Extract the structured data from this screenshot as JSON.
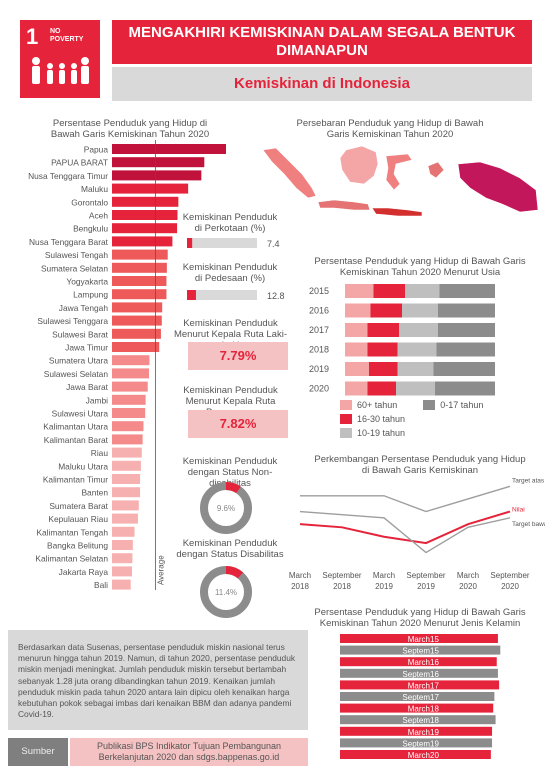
{
  "header": {
    "sdg_number": "1",
    "sdg_label_line1": "NO",
    "sdg_label_line2": "POVERTY",
    "title": "MENGAKHIRI KEMISKINAN DALAM SEGALA BENTUK DIMANAPUN",
    "subtitle": "Kemiskinan di Indonesia"
  },
  "colors": {
    "red": "#e5243b",
    "pink": "#f4c2c2",
    "grey": "#d9d9d9",
    "dark_grey": "#7f7f7f"
  },
  "chart_data": [
    {
      "type": "bar",
      "title": "Persentase Penduduk yang Hidup di Bawah Garis Kemiskinan Tahun 2020",
      "orientation": "horizontal",
      "reference_line_label": "Average",
      "reference_line_value": 10.2,
      "categories": [
        "Papua",
        "PAPUA BARAT",
        "Nusa Tenggara Timur",
        "Maluku",
        "Gorontalo",
        "Aceh",
        "Bengkulu",
        "Nusa Tenggara Barat",
        "Sulawesi Tengah",
        "Sumatera Selatan",
        "Yogyakarta",
        "Lampung",
        "Jawa Tengah",
        "Sulawesi Tenggara",
        "Sulawesi Barat",
        "Jawa Timur",
        "Sumatera Utara",
        "Sulawesi Selatan",
        "Jawa Barat",
        "Jambi",
        "Sulawesi Utara",
        "Kalimantan Utara",
        "Kalimantan Barat",
        "Riau",
        "Maluku Utara",
        "Kalimantan Timur",
        "Banten",
        "Sumatera Barat",
        "Kepulauan Riau",
        "Kalimantan Tengah",
        "Bangka Belitung",
        "Kalimantan Selatan",
        "Jakarta Raya",
        "Bali"
      ],
      "values": [
        26.8,
        21.7,
        21.0,
        17.9,
        15.6,
        15.4,
        15.3,
        14.2,
        13.1,
        12.9,
        12.8,
        12.8,
        11.8,
        11.7,
        11.5,
        11.1,
        8.8,
        8.7,
        8.4,
        7.9,
        7.8,
        7.4,
        7.2,
        7.0,
        6.8,
        6.6,
        6.6,
        6.3,
        6.1,
        5.3,
        4.9,
        4.8,
        4.7,
        4.4
      ]
    },
    {
      "type": "map",
      "title": "Persebaran Penduduk yang Hidup di Bawah Garis Kemiskinan Tahun 2020"
    },
    {
      "type": "bar",
      "title": "Kemiskinan Penduduk di Perkotaan (%)",
      "values": [
        7.4
      ],
      "value_labels": [
        "7.4"
      ],
      "xlim": [
        0,
        100
      ]
    },
    {
      "type": "bar",
      "title": "Kemiskinan Penduduk di Pedesaan (%)",
      "values": [
        12.8
      ],
      "value_labels": [
        "12.8"
      ],
      "xlim": [
        0,
        100
      ]
    },
    {
      "type": "table",
      "title": "Kemiskinan Penduduk Menurut Kepala Ruta Laki-Laki",
      "value": "7.79%"
    },
    {
      "type": "table",
      "title": "Kemiskinan Penduduk Menurut Kepala Ruta Perempuan",
      "value": "7.82%"
    },
    {
      "type": "pie",
      "title": "Kemiskinan Penduduk dengan Status Non-disabilitas",
      "value": 9.6,
      "value_label": "9.6%"
    },
    {
      "type": "pie",
      "title": "Kemiskinan Penduduk dengan Status Disabilitas",
      "value": 11.4,
      "value_label": "11.4%"
    },
    {
      "type": "bar",
      "stacked": true,
      "orientation": "horizontal",
      "title": "Persentase Penduduk yang Hidup di Bawah Garis Kemiskinan Tahun 2020 Menurut Usia",
      "categories": [
        "2015",
        "2016",
        "2017",
        "2018",
        "2019",
        "2020"
      ],
      "series": [
        {
          "name": "60+ tahun",
          "color": "#f4a6a6",
          "values": [
            19,
            17,
            15,
            15,
            16,
            15
          ]
        },
        {
          "name": "16-30 tahun",
          "color": "#e5243b",
          "values": [
            21,
            21,
            21,
            20,
            19,
            19
          ]
        },
        {
          "name": "10-19 tahun",
          "color": "#bfbfbf",
          "values": [
            23,
            24,
            26,
            26,
            24,
            26
          ]
        },
        {
          "name": "0-17 tahun",
          "color": "#8c8c8c",
          "values": [
            37,
            38,
            38,
            39,
            41,
            40
          ]
        }
      ],
      "legend": [
        "60+ tahun",
        "0-17 tahun",
        "16-30 tahun",
        "10-19 tahun"
      ]
    },
    {
      "type": "line",
      "title": "Perkembangan Persentase Penduduk yang Hidup di Bawah Garis Kemiskinan",
      "x": [
        "March 2018",
        "September 2018",
        "March 2019",
        "September 2019",
        "March 2020",
        "September 2020"
      ],
      "series": [
        {
          "name": "Target atas",
          "values": [
            10.7,
            10.7,
            10.7,
            10.2,
            10.6,
            11.0
          ]
        },
        {
          "name": "Nilai",
          "values": [
            9.8,
            9.7,
            9.4,
            9.2,
            9.8,
            10.2
          ]
        },
        {
          "name": "Target bawah",
          "values": [
            10.2,
            10.1,
            10.0,
            8.9,
            9.7,
            10.0
          ]
        }
      ]
    },
    {
      "type": "bar",
      "orientation": "horizontal",
      "title": "Persentase Penduduk yang Hidup di Bawah Garis Kemiskinan Tahun 2020 Menurut Jenis Kelamin",
      "categories": [
        "March",
        "Septem",
        "March",
        "Septem",
        "March",
        "Septem",
        "March",
        "Septem",
        "March",
        "Septem",
        "March"
      ],
      "value_labels": [
        "15",
        "15",
        "16",
        "16",
        "17",
        "17",
        "18",
        "18",
        "19",
        "19",
        "20"
      ],
      "values": [
        13.4,
        13.6,
        13.3,
        13.4,
        13.5,
        13.1,
        13.0,
        13.2,
        12.9,
        12.9,
        12.8
      ],
      "colors": [
        "#e5243b",
        "#8c8c8c",
        "#e5243b",
        "#8c8c8c",
        "#e5243b",
        "#8c8c8c",
        "#e5243b",
        "#8c8c8c",
        "#e5243b",
        "#8c8c8c",
        "#e5243b"
      ]
    }
  ],
  "note": "Berdasarkan data Susenas, persentase penduduk miskin nasional terus menurun hingga tahun 2019. Namun, di tahun 2020, persentase penduduk miskin menjadi meningkat. Jumlah penduduk miskin tersebut bertambah sebanyak 1.28 juta orang dibandingkan tahun 2019. Kenaikan jumlah penduduk miskin pada tahun 2020 antara lain dipicu oleh kenaikan harga kebutuhan pokok sebagai imbas dari kenaikan BBM dan adanya pandemi Covid-19.",
  "source": {
    "label": "Sumber",
    "text": "Publikasi BPS Indikator Tujuan Pembangunan Berkelanjutan 2020 dan sdgs.bappenas.go.id"
  }
}
